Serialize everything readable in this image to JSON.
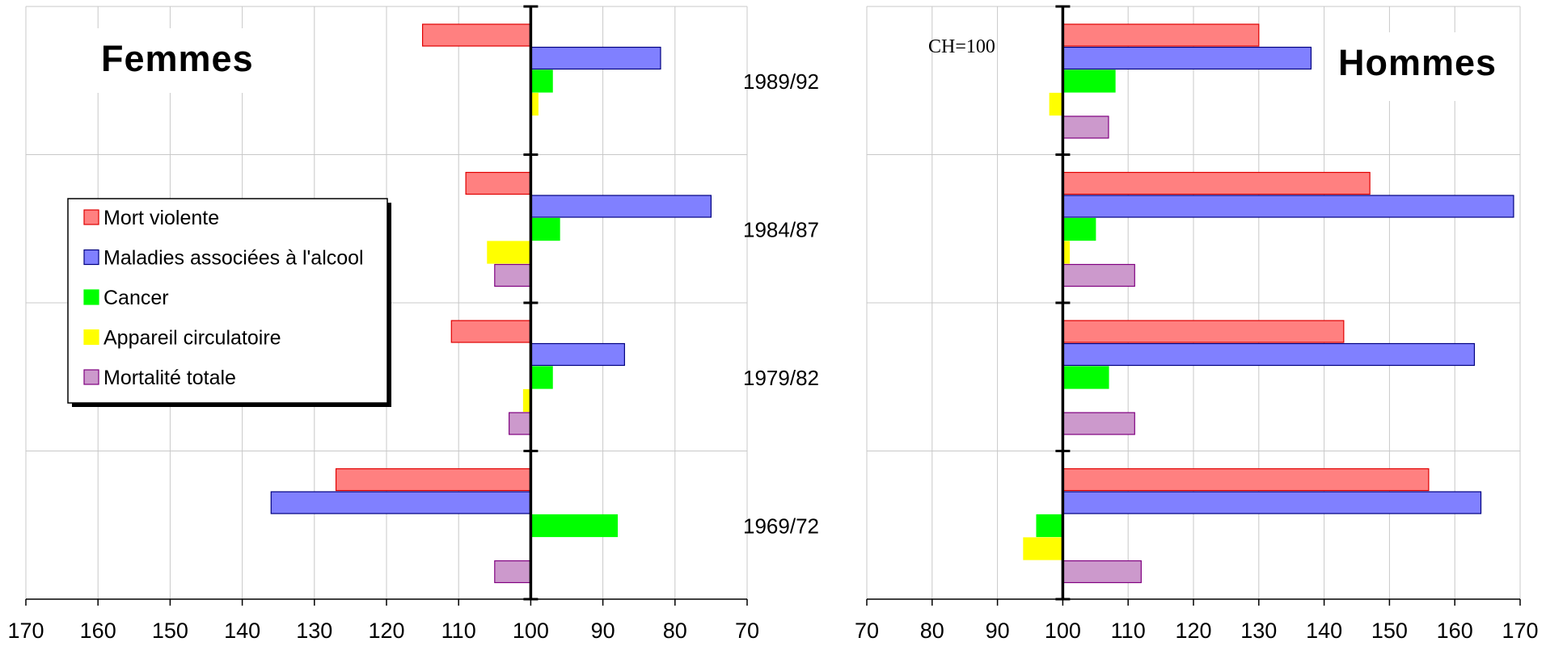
{
  "chart_data": {
    "type": "bar",
    "orientation": "horizontal",
    "note": "CH=100",
    "categories": [
      "1989/92",
      "1984/87",
      "1979/82",
      "1969/72"
    ],
    "panels": [
      {
        "title": "Femmes",
        "xlim": [
          170,
          70
        ],
        "ticks": [
          170,
          160,
          150,
          140,
          130,
          120,
          110,
          100,
          90,
          80,
          70
        ],
        "baseline": 100,
        "show_category_labels": false,
        "series": [
          {
            "key": "mort",
            "values": [
              115,
              109,
              111,
              127
            ]
          },
          {
            "key": "alcool",
            "values": [
              82,
              75,
              87,
              136
            ]
          },
          {
            "key": "cancer",
            "values": [
              97,
              96,
              97,
              88
            ]
          },
          {
            "key": "circ",
            "values": [
              99,
              106,
              101,
              100
            ]
          },
          {
            "key": "total",
            "values": [
              100,
              105,
              103,
              105
            ]
          }
        ]
      },
      {
        "title": "Hommes",
        "xlim": [
          70,
          170
        ],
        "ticks": [
          70,
          80,
          90,
          100,
          110,
          120,
          130,
          140,
          150,
          160,
          170
        ],
        "baseline": 100,
        "show_category_labels": true,
        "series": [
          {
            "key": "mort",
            "values": [
              130,
              147,
              143,
              156
            ]
          },
          {
            "key": "alcool",
            "values": [
              138,
              169,
              163,
              164
            ]
          },
          {
            "key": "cancer",
            "values": [
              108,
              105,
              107,
              96
            ]
          },
          {
            "key": "circ",
            "values": [
              98,
              101,
              100,
              94
            ]
          },
          {
            "key": "total",
            "values": [
              107,
              111,
              111,
              112
            ]
          }
        ]
      }
    ],
    "legend": {
      "placement": "left-panel-middle",
      "entries": [
        {
          "key": "mort",
          "label": "Mort violente",
          "fill": "#ff8080",
          "stroke": "#e00000"
        },
        {
          "key": "alcool",
          "label": "Maladies associées à l'alcool",
          "fill": "#8080ff",
          "stroke": "#000080"
        },
        {
          "key": "cancer",
          "label": "Cancer",
          "fill": "#00ff00",
          "stroke": "#00ff00"
        },
        {
          "key": "circ",
          "label": "Appareil circulatoire",
          "fill": "#ffff00",
          "stroke": "#ffff00"
        },
        {
          "key": "total",
          "label": "Mortalité totale",
          "fill": "#cc99cc",
          "stroke": "#800080"
        }
      ]
    },
    "grid": true
  }
}
